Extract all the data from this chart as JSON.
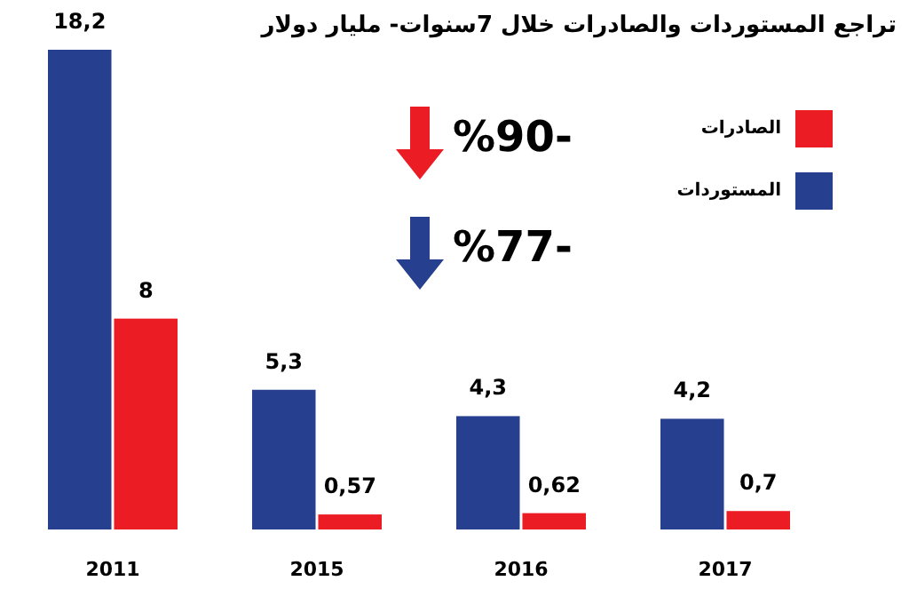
{
  "chart_data": {
    "type": "bar",
    "title": "تراجع المستوردات والصادرات خلال 7سنوات- مليار دولار",
    "categories": [
      "2011",
      "2015",
      "2016",
      "2017"
    ],
    "series": [
      {
        "name": "المستوردات",
        "color": "#263f8e",
        "values": [
          18.2,
          5.3,
          4.3,
          4.2
        ],
        "value_labels": [
          "18,2",
          "5,3",
          "4,3",
          "4,2"
        ]
      },
      {
        "name": "الصادرات",
        "color": "#ec1c24",
        "values": [
          8,
          0.57,
          0.62,
          0.7
        ],
        "value_labels": [
          "8",
          "0,57",
          "0,62",
          "0,7"
        ]
      }
    ],
    "annotations": [
      "%90-",
      "%77-"
    ],
    "legend": "top right",
    "grid": false
  }
}
